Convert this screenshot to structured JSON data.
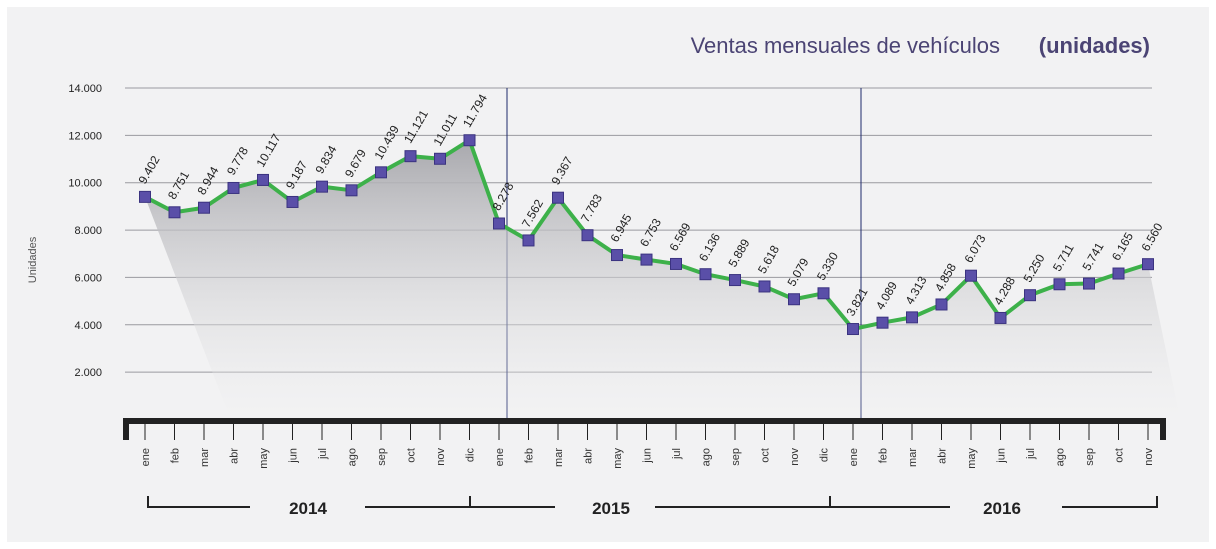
{
  "chart_data": {
    "type": "line",
    "title": "Ventas mensuales de vehículos",
    "title_unit": "(unidades)",
    "y_label": "Unidades",
    "year_labels": [
      "2014",
      "2015",
      "2016"
    ],
    "categories": [
      "ene",
      "feb",
      "mar",
      "abr",
      "may",
      "jun",
      "jul",
      "ago",
      "sep",
      "oct",
      "nov",
      "dic",
      "ene",
      "feb",
      "mar",
      "abr",
      "may",
      "jun",
      "jul",
      "ago",
      "sep",
      "oct",
      "nov",
      "dic",
      "ene",
      "feb",
      "mar",
      "abr",
      "may",
      "jun",
      "jul",
      "ago",
      "sep",
      "oct",
      "nov"
    ],
    "series": [
      {
        "name": "Ventas",
        "color": "#3db14a",
        "marker_color": "#5a4fa8",
        "values": [
          9402,
          8751,
          8944,
          9778,
          10117,
          9187,
          9834,
          9679,
          10439,
          11121,
          11011,
          11794,
          8278,
          7562,
          9367,
          7783,
          6945,
          6753,
          6569,
          6136,
          5889,
          5618,
          5079,
          5330,
          3821,
          4089,
          4313,
          4858,
          6073,
          4288,
          5250,
          5711,
          5741,
          6165,
          6560
        ],
        "value_labels": [
          "9.402",
          "8.751",
          "8.944",
          "9.778",
          "10.117",
          "9.187",
          "9.834",
          "9.679",
          "10.439",
          "11.121",
          "11.011",
          "11.794",
          "8.278",
          "7.562",
          "9.367",
          "7.783",
          "6.945",
          "6.753",
          "6.569",
          "6.136",
          "5.889",
          "5.618",
          "5.079",
          "5.330",
          "3.821",
          "4.089",
          "4.313",
          "4.858",
          "6.073",
          "4.288",
          "5.250",
          "5.711",
          "5.741",
          "6.165",
          "6.560"
        ]
      }
    ],
    "ylim": [
      0,
      14000
    ],
    "yticks": [
      {
        "value": 2000,
        "label": "2.000"
      },
      {
        "value": 4000,
        "label": "4.000"
      },
      {
        "value": 6000,
        "label": "6.000"
      },
      {
        "value": 8000,
        "label": "8.000"
      },
      {
        "value": 10000,
        "label": "10.000"
      },
      {
        "value": 12000,
        "label": "12.000"
      },
      {
        "value": 14000,
        "label": "14.000"
      }
    ],
    "grid": true
  }
}
